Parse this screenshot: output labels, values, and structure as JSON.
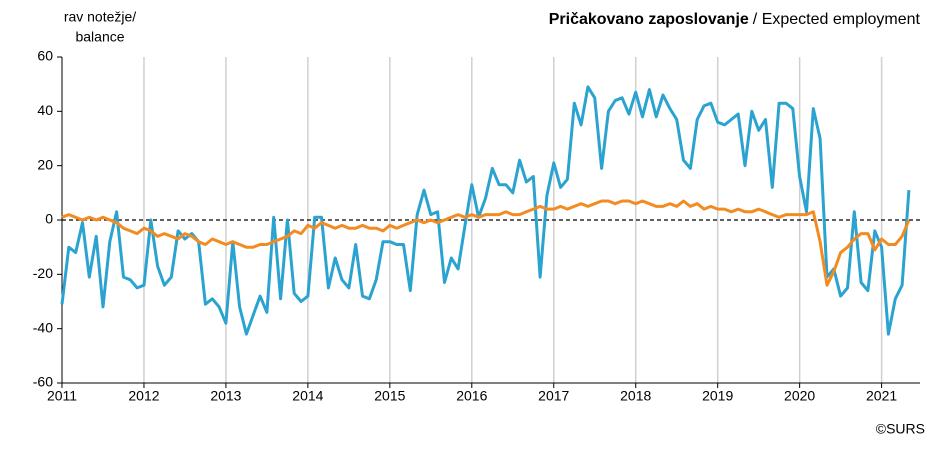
{
  "chart_data": {
    "type": "line",
    "title": "Pričakovano zaposlovanje",
    "title_suffix": "/ Expected employment",
    "ylabel": [
      "rav notežje/",
      "balance"
    ],
    "source": "©SURS",
    "categories": [
      "2011",
      null,
      null,
      null,
      null,
      null,
      null,
      null,
      null,
      null,
      null,
      null,
      "2012",
      null,
      null,
      null,
      null,
      null,
      null,
      null,
      null,
      null,
      null,
      null,
      "2013",
      null,
      null,
      null,
      null,
      null,
      null,
      null,
      null,
      null,
      null,
      null,
      "2014",
      null,
      null,
      null,
      null,
      null,
      null,
      null,
      null,
      null,
      null,
      null,
      "2015",
      null,
      null,
      null,
      null,
      null,
      null,
      null,
      null,
      null,
      null,
      null,
      "2016",
      null,
      null,
      null,
      null,
      null,
      null,
      null,
      null,
      null,
      null,
      null,
      "2017",
      null,
      null,
      null,
      null,
      null,
      null,
      null,
      null,
      null,
      null,
      null,
      "2018",
      null,
      null,
      null,
      null,
      null,
      null,
      null,
      null,
      null,
      null,
      null,
      "2019",
      null,
      null,
      null,
      null,
      null,
      null,
      null,
      null,
      null,
      null,
      null,
      "2020",
      null,
      null,
      null,
      null,
      null,
      null,
      null,
      null,
      null,
      null,
      null,
      "2021",
      null,
      null,
      null,
      null
    ],
    "series": [
      {
        "color": "#2ba3d0",
        "values": [
          -31,
          -10,
          -12,
          -1,
          -21,
          -6,
          -32,
          -8,
          3,
          -21,
          -22,
          -25,
          -24,
          0,
          -17,
          -24,
          -21,
          -4,
          -7,
          -5,
          -8,
          -31,
          -29,
          -32,
          -38,
          -8,
          -32,
          -42,
          -35,
          -28,
          -34,
          1,
          -29,
          0,
          -27,
          -30,
          -28,
          1,
          1,
          -25,
          -14,
          -22,
          -25,
          -9,
          -28,
          -29,
          -22,
          -8,
          -8,
          -9,
          -9,
          -26,
          2,
          11,
          2,
          3,
          -23,
          -14,
          -18,
          -2,
          13,
          1,
          8,
          19,
          13,
          13,
          10,
          22,
          14,
          16,
          -21,
          9,
          21,
          12,
          15,
          43,
          35,
          49,
          45,
          19,
          40,
          44,
          45,
          39,
          47,
          38,
          48,
          38,
          46,
          41,
          37,
          22,
          19,
          37,
          42,
          43,
          36,
          35,
          37,
          39,
          20,
          40,
          33,
          37,
          12,
          43,
          43,
          41,
          16,
          3,
          41,
          30,
          -21,
          -18,
          -28,
          -25,
          3,
          -23,
          -26,
          -4,
          -10,
          -42,
          -29,
          -24,
          11
        ]
      },
      {
        "color": "#f28c22",
        "values": [
          1,
          2,
          1,
          0,
          1,
          0,
          1,
          0,
          -1,
          -3,
          -4,
          -5,
          -3,
          -4,
          -6,
          -5,
          -6,
          -7,
          -5,
          -6,
          -8,
          -9,
          -7,
          -8,
          -9,
          -8,
          -9,
          -10,
          -10,
          -9,
          -9,
          -8,
          -7,
          -6,
          -4,
          -5,
          -2,
          -3,
          -1,
          -2,
          -3,
          -2,
          -3,
          -3,
          -2,
          -3,
          -3,
          -4,
          -2,
          -3,
          -2,
          -1,
          0,
          -1,
          0,
          -1,
          0,
          1,
          2,
          1,
          2,
          1,
          2,
          2,
          2,
          3,
          2,
          2,
          3,
          4,
          5,
          4,
          4,
          5,
          4,
          5,
          6,
          5,
          6,
          7,
          7,
          6,
          7,
          7,
          6,
          7,
          6,
          5,
          5,
          6,
          5,
          7,
          5,
          6,
          4,
          5,
          4,
          4,
          3,
          4,
          3,
          3,
          4,
          3,
          2,
          1,
          2,
          2,
          2,
          2,
          3,
          -8,
          -24,
          -19,
          -12,
          -10,
          -7,
          -5,
          -5,
          -11,
          -7,
          -9,
          -9,
          -6,
          0
        ]
      }
    ],
    "ylim": [
      -60,
      60
    ],
    "yticks": [
      -60,
      -40,
      -20,
      0,
      20,
      40,
      60
    ],
    "grid": true,
    "zero_line": true
  }
}
